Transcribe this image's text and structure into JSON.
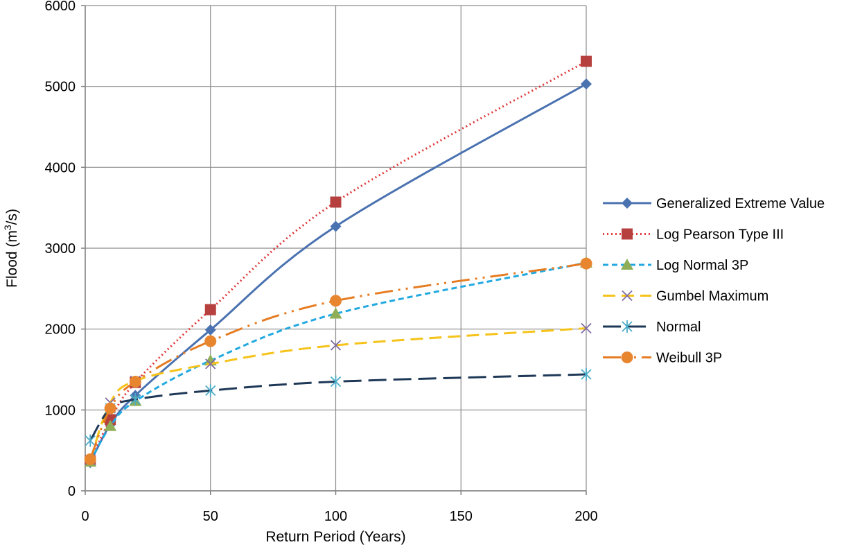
{
  "chart_data": {
    "type": "line",
    "xlabel": "Return Period (Years)",
    "ylabel_prefix": "Flood (m",
    "ylabel_sup": "3",
    "ylabel_suffix": "/s)",
    "xlim": [
      0,
      200
    ],
    "ylim": [
      0,
      6000
    ],
    "xticks": [
      0,
      50,
      100,
      150,
      200
    ],
    "yticks": [
      0,
      1000,
      2000,
      3000,
      4000,
      5000,
      6000
    ],
    "grid": true,
    "legend_position": "right",
    "x": [
      2,
      10,
      20,
      50,
      100,
      200
    ],
    "series": [
      {
        "name": "Generalized Extreme Value",
        "values": [
          350,
          820,
          1180,
          1990,
          3270,
          5030
        ],
        "color": "#4a72b0",
        "dash": "",
        "marker": "diamond"
      },
      {
        "name": "Log Pearson Type III",
        "values": [
          370,
          880,
          1340,
          2240,
          3570,
          5310
        ],
        "color": "#e0393b",
        "dash": "2,4",
        "marker": "square",
        "marker_color": "#b6403d"
      },
      {
        "name": "Log Normal 3P",
        "values": [
          360,
          800,
          1110,
          1610,
          2190,
          2820
        ],
        "color": "#22a9e0",
        "dash": "8,5",
        "marker": "triangle",
        "marker_color": "#8fae57"
      },
      {
        "name": "Gumbel Maximum",
        "values": [
          380,
          1090,
          1360,
          1570,
          1800,
          2010
        ],
        "color": "#f5c319",
        "dash": "18,9",
        "marker": "x",
        "marker_color": "#7f6aa3"
      },
      {
        "name": "Normal",
        "values": [
          620,
          1020,
          1130,
          1240,
          1350,
          1440
        ],
        "color": "#1e3857",
        "dash": "26,10",
        "marker": "star",
        "marker_color": "#4aabc6"
      },
      {
        "name": "Weibull 3P",
        "values": [
          390,
          1020,
          1350,
          1850,
          2350,
          2810
        ],
        "color": "#e67c22",
        "dash": "26,8,3,8,3,8",
        "marker": "circle",
        "marker_color": "#e8852f"
      }
    ]
  }
}
